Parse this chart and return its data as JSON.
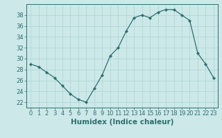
{
  "x": [
    0,
    1,
    2,
    3,
    4,
    5,
    6,
    7,
    8,
    9,
    10,
    11,
    12,
    13,
    14,
    15,
    16,
    17,
    18,
    19,
    20,
    21,
    22,
    23
  ],
  "y": [
    29,
    28.5,
    27.5,
    26.5,
    25,
    23.5,
    22.5,
    22,
    24.5,
    27,
    30.5,
    32,
    35,
    37.5,
    38,
    37.5,
    38.5,
    39,
    39,
    38,
    37,
    31,
    29,
    26.5
  ],
  "line_color": "#2d6e6e",
  "marker": "D",
  "marker_size": 2.0,
  "bg_color": "#cce8e8",
  "grid_color": "#aad4d4",
  "xlabel": "Humidex (Indice chaleur)",
  "xlim": [
    -0.5,
    23.5
  ],
  "ylim": [
    21,
    40
  ],
  "yticks": [
    22,
    24,
    26,
    28,
    30,
    32,
    34,
    36,
    38
  ],
  "xticks": [
    0,
    1,
    2,
    3,
    4,
    5,
    6,
    7,
    8,
    9,
    10,
    11,
    12,
    13,
    14,
    15,
    16,
    17,
    18,
    19,
    20,
    21,
    22,
    23
  ],
  "tick_color": "#2d6e6e",
  "xlabel_fontsize": 7.5,
  "tick_fontsize": 6.0
}
